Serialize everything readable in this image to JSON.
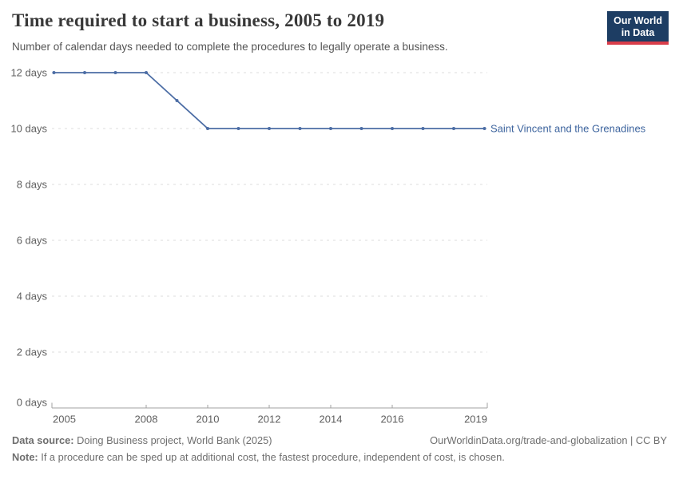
{
  "header": {
    "title": "Time required to start a business, 2005 to 2019",
    "subtitle": "Number of calendar days needed to complete the procedures to legally operate a business.",
    "logo": {
      "line1": "Our World",
      "line2": "in Data",
      "bg_color": "#1d3d63",
      "accent_color": "#d93d4a"
    }
  },
  "chart_data": {
    "type": "line",
    "title": "Time required to start a business, 2005 to 2019",
    "x": [
      2005,
      2006,
      2007,
      2008,
      2009,
      2010,
      2011,
      2012,
      2013,
      2014,
      2015,
      2016,
      2017,
      2018,
      2019
    ],
    "series": [
      {
        "name": "Saint Vincent and the Grenadines",
        "values": [
          12,
          12,
          12,
          12,
          11,
          10,
          10,
          10,
          10,
          10,
          10,
          10,
          10,
          10,
          10
        ],
        "color": "#4c6da5",
        "label_color": "#3d649e"
      }
    ],
    "xlabel": "",
    "ylabel": "",
    "xlim": [
      2005,
      2019
    ],
    "ylim": [
      0,
      12
    ],
    "xticks": [
      2005,
      2008,
      2010,
      2012,
      2014,
      2016,
      2019
    ],
    "yticks": [
      {
        "value": 0,
        "label": "0 days"
      },
      {
        "value": 2,
        "label": "2 days"
      },
      {
        "value": 4,
        "label": "4 days"
      },
      {
        "value": 6,
        "label": "6 days"
      },
      {
        "value": 8,
        "label": "8 days"
      },
      {
        "value": 10,
        "label": "10 days"
      },
      {
        "value": 12,
        "label": "12 days"
      }
    ],
    "grid": "horizontal-dashed",
    "legend_position": "right-of-line"
  },
  "footer": {
    "source_label": "Data source:",
    "source_text": "Doing Business project, World Bank (2025)",
    "attribution": "OurWorldinData.org/trade-and-globalization | CC BY",
    "note_label": "Note:",
    "note_text": "If a procedure can be sped up at additional cost, the fastest procedure, independent of cost, is chosen."
  },
  "colors": {
    "grid": "#dedede",
    "axis": "#a1a1a1",
    "tick_label": "#5f5f5f"
  }
}
